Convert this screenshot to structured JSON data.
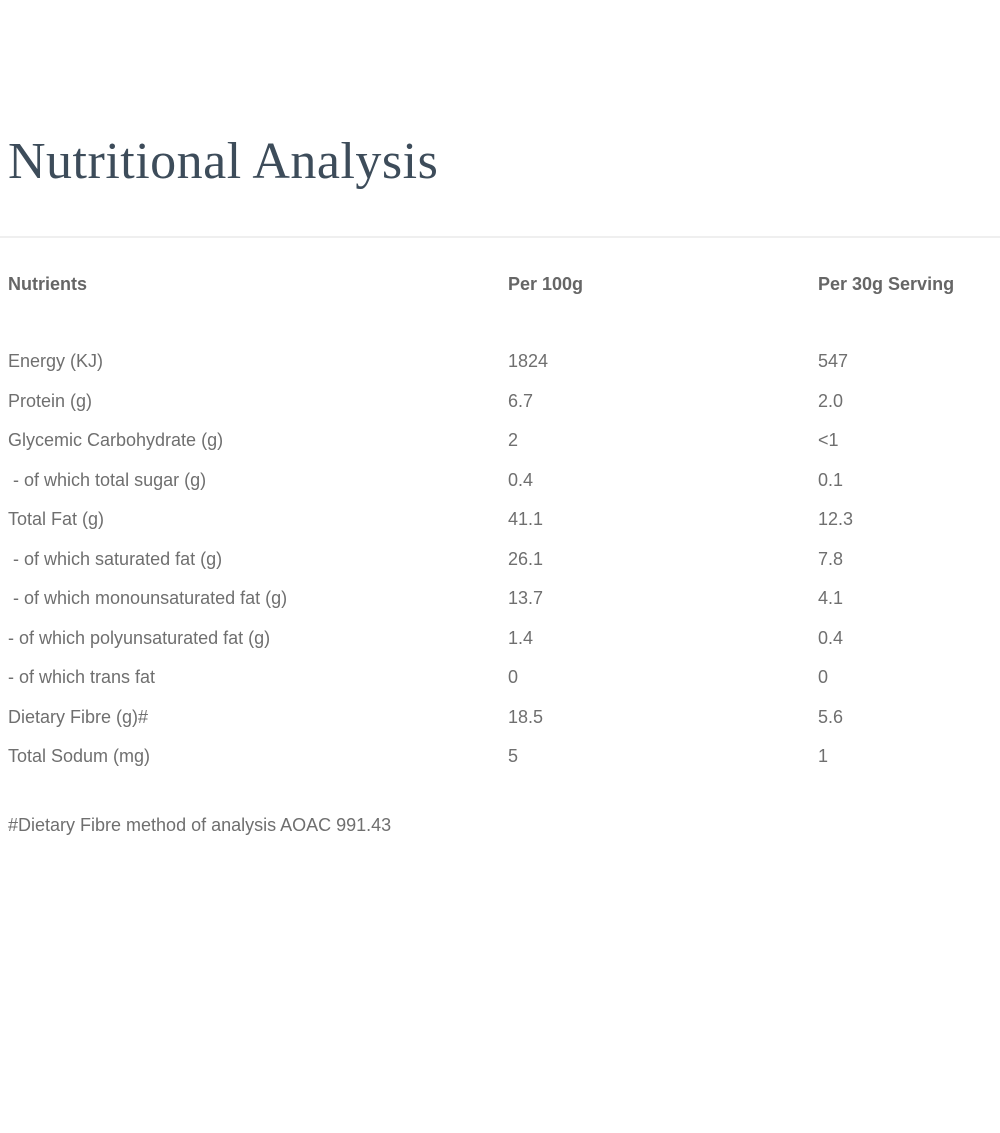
{
  "page": {
    "title": "Nutritional Analysis",
    "footnote": "#Dietary Fibre method of analysis AOAC 991.43"
  },
  "table": {
    "columns": [
      "Nutrients",
      "Per 100g",
      "Per 30g Serving"
    ],
    "rows": [
      {
        "nutrient": "Energy (KJ)",
        "per_100g": "1824",
        "per_30g": "547"
      },
      {
        "nutrient": "Protein (g)",
        "per_100g": "6.7",
        "per_30g": "2.0"
      },
      {
        "nutrient": "Glycemic Carbohydrate (g)",
        "per_100g": "2",
        "per_30g": "<1"
      },
      {
        "nutrient": " - of which total sugar (g)",
        "per_100g": "0.4",
        "per_30g": "0.1"
      },
      {
        "nutrient": "Total Fat (g)",
        "per_100g": "41.1",
        "per_30g": "12.3"
      },
      {
        "nutrient": " - of which saturated fat (g)",
        "per_100g": "26.1",
        "per_30g": "7.8"
      },
      {
        "nutrient": " - of which monounsaturated fat (g)",
        "per_100g": "13.7",
        "per_30g": "4.1"
      },
      {
        "nutrient": "- of which polyunsaturated fat (g)",
        "per_100g": "1.4",
        "per_30g": "0.4"
      },
      {
        "nutrient": "- of which trans fat",
        "per_100g": "0",
        "per_30g": "0"
      },
      {
        "nutrient": "Dietary Fibre (g)#",
        "per_100g": "18.5",
        "per_30g": "5.6"
      },
      {
        "nutrient": "Total Sodum (mg)",
        "per_100g": "5",
        "per_30g": "1"
      }
    ]
  },
  "colors": {
    "title": "#3d4c5a",
    "table_text": "#6f6f6f",
    "header_text": "#666666",
    "divider": "#efefef",
    "background": "#ffffff"
  }
}
